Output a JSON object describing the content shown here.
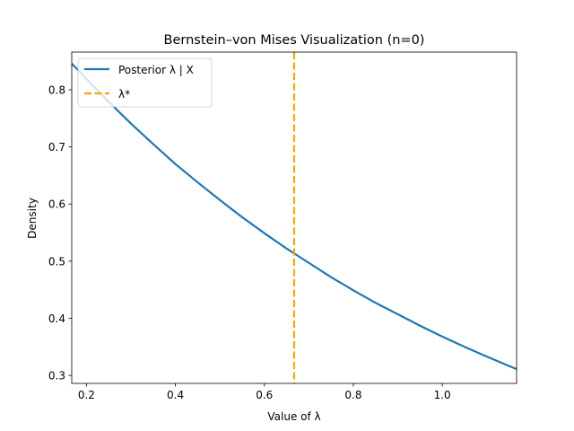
{
  "chart_data": {
    "type": "line",
    "title": "Bernstein–von Mises Visualization (n=0)",
    "xlabel": "Value of λ",
    "ylabel": "Density",
    "xlim": [
      0.167,
      1.167
    ],
    "ylim": [
      0.286,
      0.866
    ],
    "xticks": [
      0.2,
      0.4,
      0.6,
      0.8,
      1.0
    ],
    "xtick_labels": [
      "0.2",
      "0.4",
      "0.6",
      "0.8",
      "1.0"
    ],
    "yticks": [
      0.3,
      0.4,
      0.5,
      0.6,
      0.7,
      0.8
    ],
    "ytick_labels": [
      "0.3",
      "0.4",
      "0.5",
      "0.6",
      "0.7",
      "0.8"
    ],
    "grid": false,
    "legend_position": "top-left",
    "series": [
      {
        "name": "Posterior λ | X",
        "kind": "line",
        "color": "#1f77b4",
        "x": [
          0.167,
          0.2,
          0.25,
          0.3,
          0.35,
          0.4,
          0.45,
          0.5,
          0.55,
          0.6,
          0.65,
          0.7,
          0.75,
          0.8,
          0.85,
          0.9,
          0.95,
          1.0,
          1.05,
          1.1,
          1.167
        ],
        "y": [
          0.846,
          0.819,
          0.779,
          0.741,
          0.705,
          0.67,
          0.638,
          0.607,
          0.577,
          0.549,
          0.522,
          0.497,
          0.472,
          0.449,
          0.427,
          0.407,
          0.387,
          0.368,
          0.35,
          0.333,
          0.311
        ]
      },
      {
        "name": "λ*",
        "kind": "vline",
        "color": "#f2a900",
        "x": 0.667
      }
    ]
  }
}
